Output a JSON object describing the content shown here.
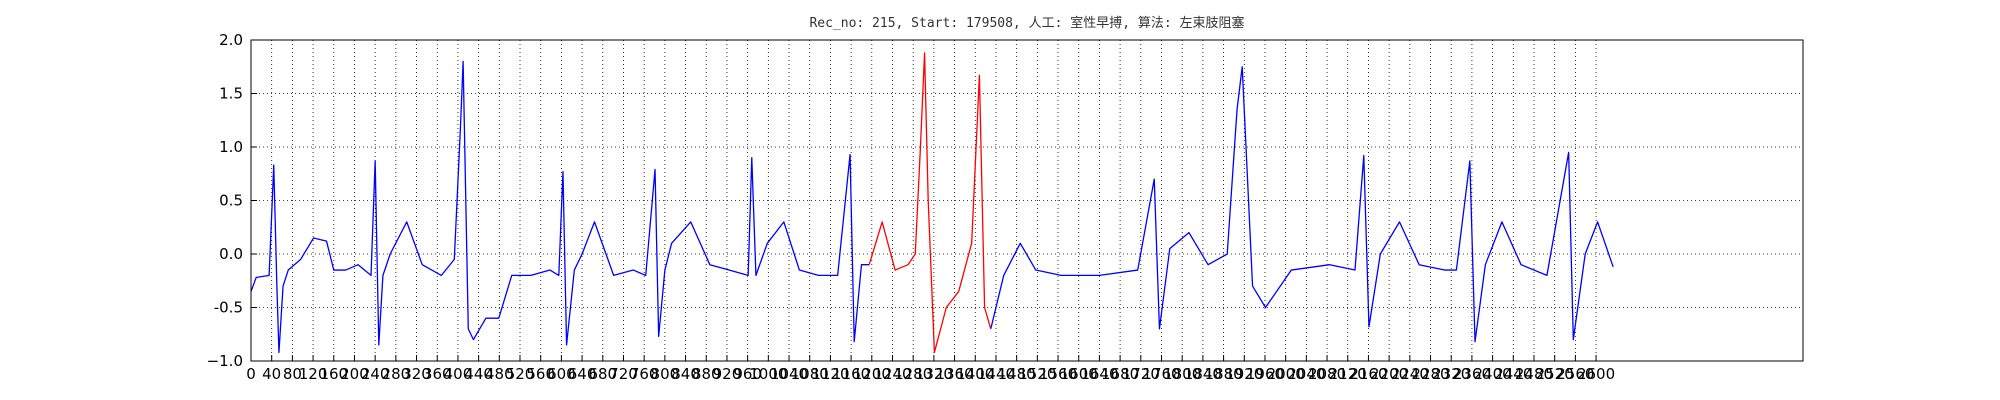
{
  "chart_data": {
    "type": "line",
    "title": "Rec_no: 215, Start: 179508, 人工: 室性早搏, 算法: 左束肢阻塞",
    "x": [
      0,
      10,
      35,
      44,
      50,
      54,
      62,
      72,
      96,
      121,
      146,
      160,
      183,
      207,
      232,
      240,
      247,
      255,
      269,
      301,
      331,
      368,
      393,
      405,
      410,
      420,
      430,
      454,
      479,
      504,
      541,
      578,
      595,
      603,
      610,
      625,
      640,
      664,
      701,
      739,
      763,
      781,
      788,
      800,
      813,
      850,
      887,
      924,
      961,
      968,
      976,
      998,
      1030,
      1060,
      1097,
      1134,
      1158,
      1166,
      1180,
      1195,
      1220,
      1245,
      1270,
      1284,
      1294,
      1302,
      1309,
      1321,
      1344,
      1368,
      1393,
      1408,
      1418,
      1430,
      1455,
      1487,
      1517,
      1566,
      1640,
      1714,
      1746,
      1756,
      1776,
      1813,
      1850,
      1887,
      1906,
      1916,
      1936,
      1961,
      2011,
      2085,
      2134,
      2151,
      2161,
      2183,
      2220,
      2258,
      2307,
      2330,
      2356,
      2366,
      2386,
      2418,
      2455,
      2505,
      2547,
      2556,
      2579,
      2603,
      2633
    ],
    "series": [
      {
        "color": "#0000ff",
        "values": [
          -0.35,
          -0.22,
          -0.2,
          0.83,
          -0.3,
          -0.92,
          -0.3,
          -0.15,
          -0.05,
          0.15,
          0.12,
          -0.15,
          -0.15,
          -0.1,
          -0.2,
          0.87,
          -0.85,
          -0.2,
          0.0,
          0.3,
          -0.1,
          -0.2,
          -0.05,
          1.2,
          1.8,
          -0.7,
          -0.8,
          -0.6,
          -0.6,
          -0.2,
          -0.2,
          -0.15,
          -0.2,
          0.77,
          -0.85,
          -0.15,
          0.0,
          0.3,
          -0.2,
          -0.15,
          -0.2,
          0.79,
          -0.77,
          -0.15,
          0.1,
          0.3,
          -0.1,
          -0.15,
          -0.2,
          0.9,
          -0.2,
          0.1,
          0.3,
          -0.15,
          -0.2,
          -0.2,
          0.93,
          -0.82,
          -0.1,
          -0.1,
          null,
          null,
          null,
          null,
          null,
          null,
          null,
          null,
          null,
          null,
          null,
          null,
          null,
          -0.7,
          -0.2,
          0.1,
          -0.15,
          -0.2,
          -0.2,
          -0.15,
          0.7,
          -0.7,
          0.05,
          0.2,
          -0.1,
          0.0,
          1.35,
          1.75,
          -0.3,
          -0.5,
          -0.15,
          -0.1,
          -0.15,
          0.92,
          -0.68,
          0.0,
          0.3,
          -0.1,
          -0.15,
          -0.15,
          0.87,
          -0.82,
          -0.1,
          0.3,
          -0.1,
          -0.2,
          0.95,
          -0.8,
          0.0,
          0.3,
          -0.12
        ]
      },
      {
        "color": "#ff0000",
        "values": [
          null,
          null,
          null,
          null,
          null,
          null,
          null,
          null,
          null,
          null,
          null,
          null,
          null,
          null,
          null,
          null,
          null,
          null,
          null,
          null,
          null,
          null,
          null,
          null,
          null,
          null,
          null,
          null,
          null,
          null,
          null,
          null,
          null,
          null,
          null,
          null,
          null,
          null,
          null,
          null,
          null,
          null,
          null,
          null,
          null,
          null,
          null,
          null,
          null,
          null,
          null,
          null,
          null,
          null,
          null,
          null,
          null,
          null,
          null,
          -0.1,
          0.3,
          -0.15,
          -0.1,
          0.0,
          1.0,
          1.88,
          0.5,
          -0.92,
          -0.5,
          -0.35,
          0.1,
          1.67,
          -0.5,
          -0.7,
          null,
          null,
          null,
          null,
          null,
          null,
          null,
          null,
          null,
          null,
          null,
          null,
          null,
          null,
          null,
          null,
          null,
          null,
          null,
          null,
          null,
          null,
          null,
          null,
          null,
          null,
          null,
          null,
          null,
          null,
          null,
          null,
          null,
          null,
          null,
          null,
          null
        ]
      }
    ],
    "xlim": [
      0,
      3000
    ],
    "xticks": [
      0,
      40,
      80,
      120,
      160,
      200,
      240,
      280,
      320,
      360,
      400,
      440,
      480,
      520,
      560,
      600,
      640,
      680,
      720,
      760,
      800,
      840,
      880,
      920,
      960,
      1000,
      1040,
      1080,
      1120,
      1160,
      1200,
      1240,
      1280,
      1320,
      1360,
      1400,
      1440,
      1480,
      1520,
      1560,
      1600,
      1640,
      1680,
      1720,
      1760,
      1800,
      1840,
      1880,
      1920,
      1960,
      2000,
      2040,
      2080,
      2120,
      2160,
      2200,
      2240,
      2280,
      2320,
      2360,
      2400,
      2440,
      2480,
      2520,
      2560,
      2600
    ],
    "ylim": [
      -1,
      2
    ],
    "yticks": [
      {
        "value": -1,
        "label": "−1.0"
      },
      -0.5,
      {
        "value": 0,
        "label": "0.0"
      },
      0.5,
      {
        "value": 1,
        "label": "1.0"
      },
      1.5,
      {
        "value": 2,
        "label": "2.0"
      }
    ],
    "grid": true
  }
}
